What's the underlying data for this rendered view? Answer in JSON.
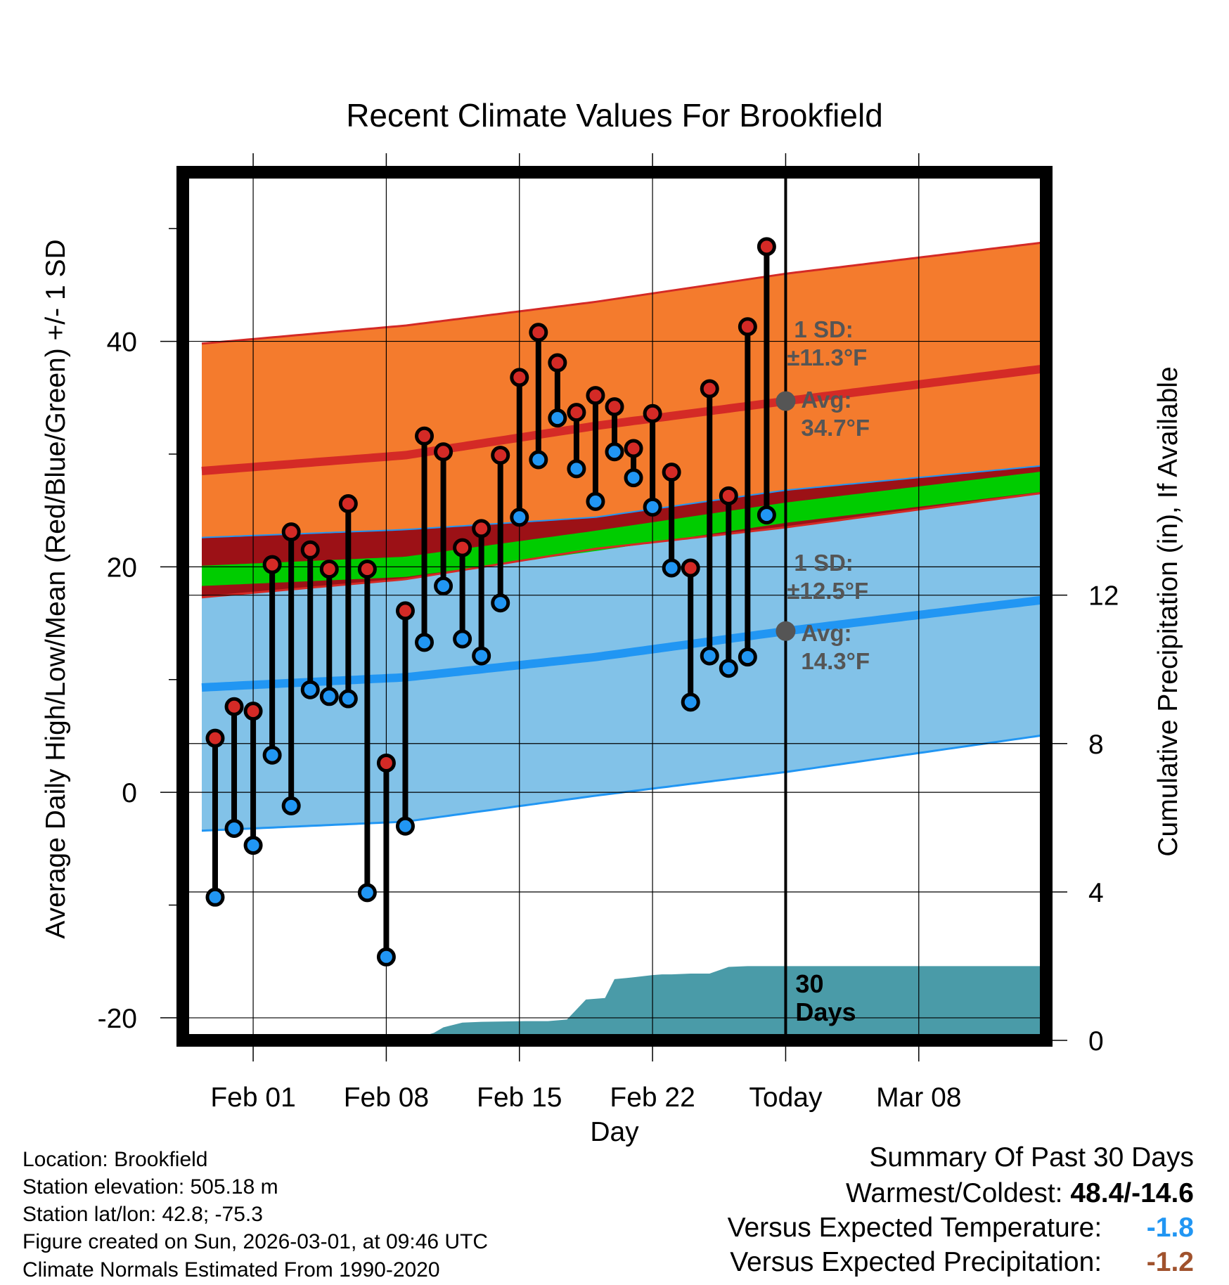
{
  "chart_data": {
    "type": "line",
    "title": "Recent Climate Values For Brookfield",
    "xlabel": "Day",
    "ylabel": "Average Daily High/Low/Mean (Red/Blue/Green) +/- 1 SD",
    "y2label": "Cumulative Precipitation (in), If Available",
    "ylim": [
      -22,
      55
    ],
    "y2lim": [
      0,
      23.4
    ],
    "xlim": [
      -3.7,
      41.7
    ],
    "x_ticks": [
      {
        "day": 0,
        "label": "Feb 01"
      },
      {
        "day": 7,
        "label": "Feb 08"
      },
      {
        "day": 14,
        "label": "Feb 15"
      },
      {
        "day": 21,
        "label": "Feb 22"
      },
      {
        "day": 28,
        "label": "Today"
      },
      {
        "day": 35,
        "label": "Mar 08"
      }
    ],
    "y_ticks": [
      -20,
      0,
      20,
      40
    ],
    "y_minor_ticks": [
      -10,
      10,
      30,
      50
    ],
    "y2_ticks": [
      0,
      4,
      8,
      12
    ],
    "normals": {
      "x": [
        -2.7,
        8,
        18,
        28,
        41.7
      ],
      "high_avg": [
        28.5,
        29.9,
        32.5,
        34.7,
        37.6
      ],
      "high_upper": [
        39.8,
        41.4,
        43.5,
        46.0,
        48.8
      ],
      "high_lower": [
        17.3,
        18.9,
        21.6,
        23.5,
        26.6
      ],
      "low_avg": [
        9.3,
        10.2,
        12.0,
        14.3,
        17.1
      ],
      "low_upper": [
        22.6,
        23.3,
        24.4,
        26.8,
        29.0
      ],
      "low_lower": [
        -3.4,
        -2.6,
        -0.3,
        1.8,
        5.1
      ],
      "mean_avg": [
        19.2,
        20.0,
        22.3,
        24.8,
        27.6
      ],
      "mean_band": 0.9
    },
    "observed_x": [
      -2,
      -1,
      0,
      1,
      2,
      3,
      4,
      5,
      6,
      7,
      8,
      9,
      10,
      11,
      12,
      13,
      14,
      15,
      16,
      17,
      18,
      19,
      20,
      21,
      22,
      23,
      24,
      25,
      26,
      27
    ],
    "observed_high": [
      4.8,
      7.6,
      7.2,
      20.2,
      23.1,
      21.5,
      19.8,
      25.6,
      19.8,
      2.6,
      16.1,
      31.6,
      30.2,
      21.7,
      23.4,
      29.9,
      36.8,
      40.8,
      38.1,
      33.7,
      35.2,
      34.2,
      30.5,
      33.6,
      28.4,
      19.9,
      35.8,
      26.3,
      41.3,
      48.4
    ],
    "observed_low": [
      -9.3,
      -3.2,
      -4.7,
      3.3,
      -1.2,
      9.1,
      8.5,
      8.3,
      -8.9,
      -14.6,
      -3.0,
      13.3,
      18.3,
      13.6,
      12.1,
      16.8,
      24.4,
      29.5,
      33.2,
      28.7,
      25.8,
      30.2,
      27.9,
      25.3,
      19.9,
      8.0,
      12.1,
      11.0,
      12.0,
      24.6
    ],
    "precip_x": [
      -3.7,
      7,
      8.5,
      9.5,
      10,
      11,
      12,
      14.3,
      15.5,
      16.5,
      17.5,
      18.5,
      19,
      20,
      21,
      21.5,
      22,
      23,
      24,
      25,
      26,
      28,
      41.7
    ],
    "precip_cum": [
      0,
      0,
      0.05,
      0.2,
      0.35,
      0.48,
      0.5,
      0.52,
      0.52,
      0.56,
      1.1,
      1.14,
      1.65,
      1.7,
      1.76,
      1.78,
      1.78,
      1.8,
      1.8,
      1.98,
      2.0,
      2.0,
      2.0
    ],
    "high_annotation": {
      "sd": "1 SD:",
      "sd_value": "±11.3°F",
      "avg": "Avg:",
      "avg_value": "34.7°F",
      "marker_value": 34.7
    },
    "low_annotation": {
      "sd": "1 SD:",
      "sd_value": "±12.5°F",
      "avg": "Avg:",
      "avg_value": "14.3°F",
      "marker_value": 14.3
    },
    "window_label": [
      "30",
      "Days"
    ],
    "colors": {
      "high_band": "#f47b2d",
      "high_line": "#d42a26",
      "low_band": "#82c2e8",
      "low_line": "#2196f3",
      "mean_band": "#00cc00",
      "overlap_band": "#9c1116",
      "precip_fill": "#4a9ba8",
      "high_dot": "#d42a26",
      "low_dot": "#2196f3",
      "annotation": "#555555"
    }
  },
  "info": {
    "location": "Location: Brookfield",
    "elevation": "Station elevation: 505.18 m",
    "latlon": "Station lat/lon: 42.8; -75.3",
    "created": "Figure created on Sun, 2026-03-01, at 09:46 UTC",
    "normals": "Climate Normals Estimated From 1990-2020"
  },
  "summary": {
    "title": "Summary Of Past 30 Days",
    "warm_cold_label": "Warmest/Coldest:",
    "warm_cold_value": "48.4/-14.6",
    "temp_label": "Versus Expected Temperature:",
    "temp_value": "-1.8",
    "temp_color": "#2196f3",
    "precip_label": "Versus Expected Precipitation:",
    "precip_value": "-1.2",
    "precip_color": "#a0522d"
  }
}
